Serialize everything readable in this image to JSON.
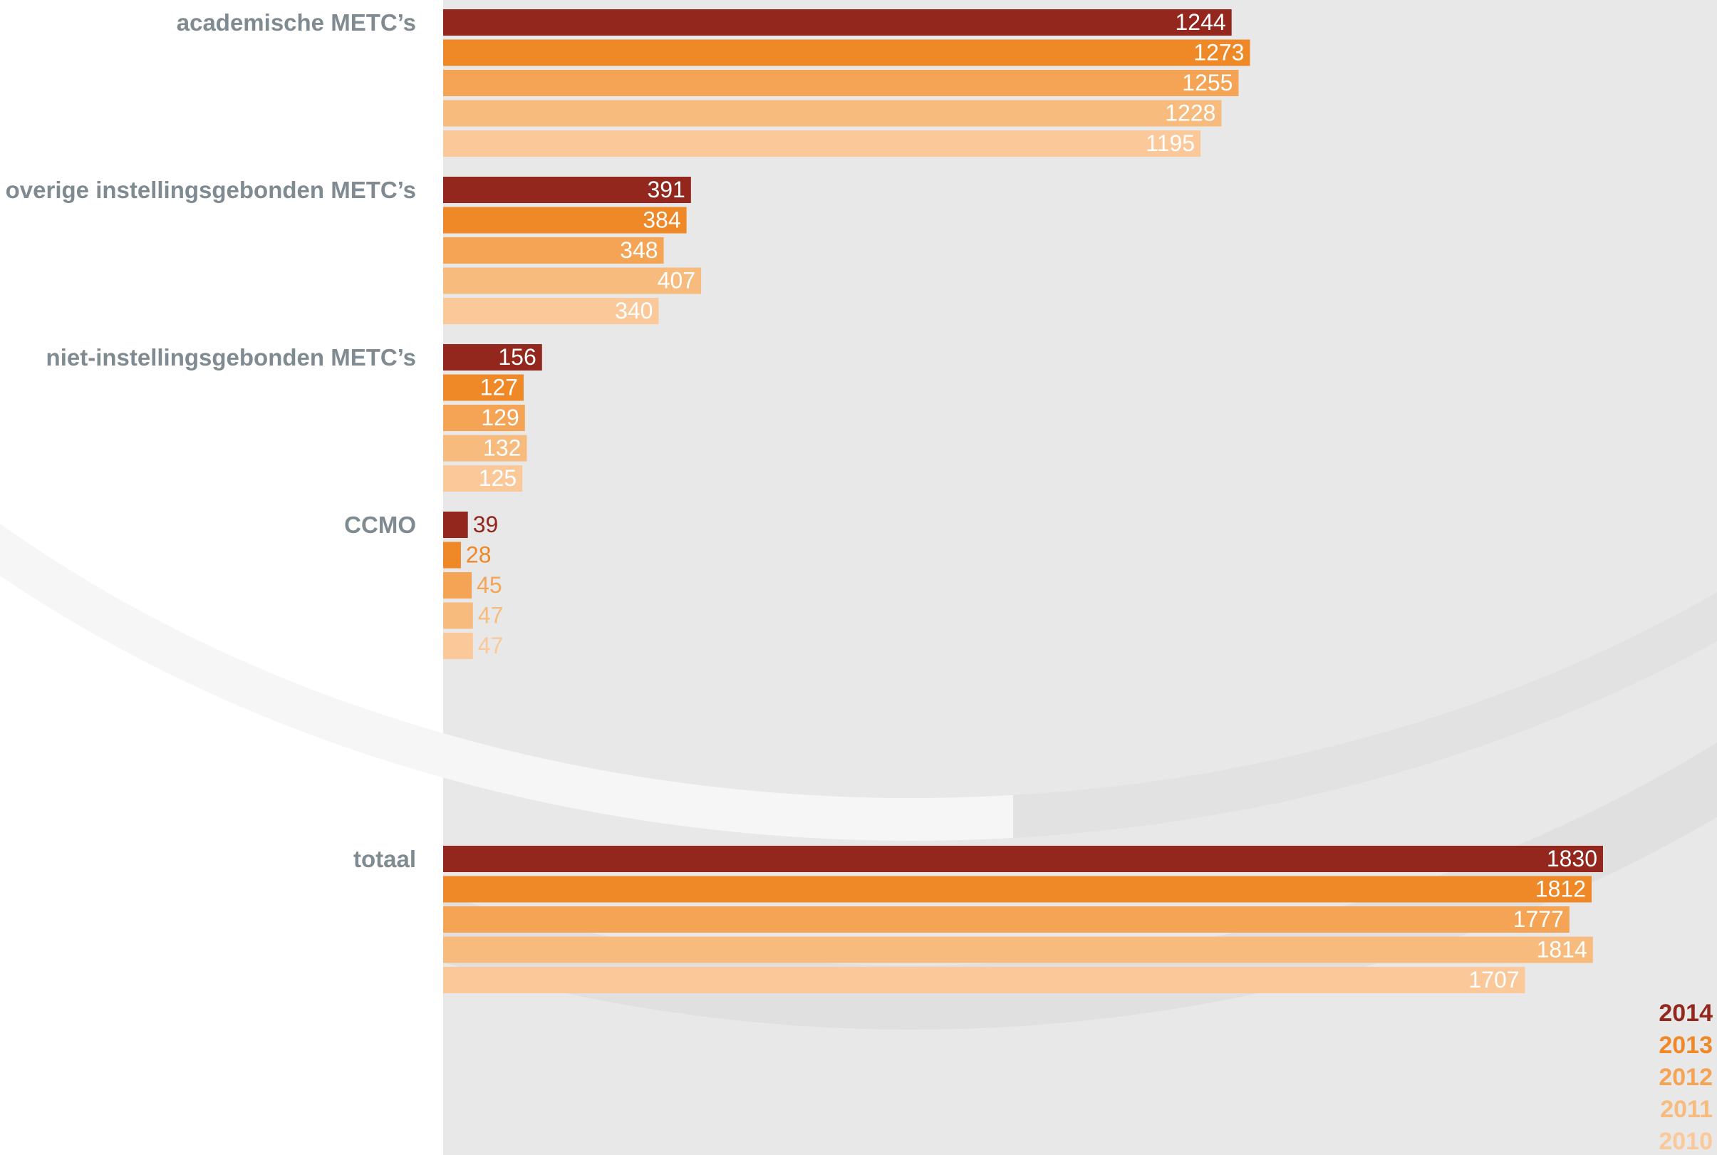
{
  "chart_data": {
    "type": "bar",
    "orientation": "horizontal",
    "categories": [
      "academische METC’s",
      "overige instellingsgebonden METC’s",
      "niet-instellingsgebonden METC’s",
      "CCMO",
      "totaal"
    ],
    "series": [
      {
        "name": "2014",
        "color": "#93271d",
        "values": [
          1244,
          391,
          156,
          39,
          1830
        ]
      },
      {
        "name": "2013",
        "color": "#ef8826",
        "values": [
          1273,
          384,
          127,
          28,
          1812
        ]
      },
      {
        "name": "2012",
        "color": "#f4a454",
        "values": [
          1255,
          348,
          129,
          45,
          1777
        ]
      },
      {
        "name": "2011",
        "color": "#f8bb7e",
        "values": [
          1228,
          407,
          132,
          47,
          1814
        ]
      },
      {
        "name": "2010",
        "color": "#fbc89a",
        "values": [
          1195,
          340,
          125,
          47,
          1707
        ]
      }
    ],
    "title": "",
    "xlabel": "",
    "ylabel": "",
    "xlim": [
      0,
      1830
    ],
    "grid": false,
    "legend": "bottom-right",
    "value_labels": "inside-end",
    "category_label_color": "#7f8a91",
    "background_panel_color": "#e8e8e9"
  }
}
